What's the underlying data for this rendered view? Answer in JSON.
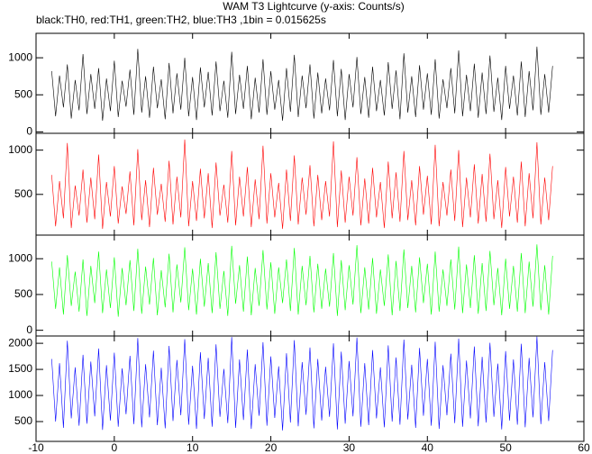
{
  "chart_data": {
    "type": "line",
    "title": "WAM T3 Lightcurve (y-axis: Counts/s)",
    "subtitle": "black:TH0, red:TH1, green:TH2, blue:TH3 ,1bin = 0.015625s",
    "xlim": [
      -10,
      60
    ],
    "xticks": [
      -10,
      0,
      10,
      20,
      30,
      40,
      50,
      60
    ],
    "x": [
      -8,
      -7.5,
      -7,
      -6.5,
      -6,
      -5.5,
      -5,
      -4.5,
      -4,
      -3.5,
      -3,
      -2.5,
      -2,
      -1.5,
      -1,
      -0.5,
      0,
      0.5,
      1,
      1.5,
      2,
      2.5,
      3,
      3.5,
      4,
      4.5,
      5,
      5.5,
      6,
      6.5,
      7,
      7.5,
      8,
      8.5,
      9,
      9.5,
      10,
      10.5,
      11,
      11.5,
      12,
      12.5,
      13,
      13.5,
      14,
      14.5,
      15,
      15.5,
      16,
      16.5,
      17,
      17.5,
      18,
      18.5,
      19,
      19.5,
      20,
      20.5,
      21,
      21.5,
      22,
      22.5,
      23,
      23.5,
      24,
      24.5,
      25,
      25.5,
      26,
      26.5,
      27,
      27.5,
      28,
      28.5,
      29,
      29.5,
      30,
      30.5,
      31,
      31.5,
      32,
      32.5,
      33,
      33.5,
      34,
      34.5,
      35,
      35.5,
      36,
      36.5,
      37,
      37.5,
      38,
      38.5,
      39,
      39.5,
      40,
      40.5,
      41,
      41.5,
      42,
      42.5,
      43,
      43.5,
      44,
      44.5,
      45,
      45.5,
      46,
      46.5,
      47,
      47.5,
      48,
      48.5,
      49,
      49.5,
      50,
      50.5,
      51,
      51.5,
      52,
      52.5,
      53,
      53.5,
      54,
      54.5,
      55,
      55.5,
      56
    ],
    "series": [
      {
        "color": "#000000",
        "ylim": [
          -20,
          1330
        ],
        "yticks": [
          0,
          500,
          1000
        ],
        "values": [
          820,
          210,
          760,
          330,
          910,
          180,
          700,
          290,
          1050,
          240,
          780,
          310,
          860,
          150,
          720,
          280,
          960,
          200,
          690,
          340,
          840,
          230,
          1120,
          260,
          750,
          190,
          880,
          320,
          710,
          170,
          930,
          250,
          790,
          300,
          1000,
          210,
          740,
          160,
          870,
          330,
          810,
          220,
          950,
          280,
          690,
          190,
          1080,
          240,
          770,
          310,
          890,
          170,
          730,
          260,
          980,
          230,
          820,
          300,
          700,
          150,
          860,
          270,
          1040,
          200,
          760,
          320,
          910,
          180,
          800,
          250,
          720,
          290,
          970,
          210,
          850,
          160,
          780,
          330,
          1010,
          240,
          740,
          190,
          880,
          280,
          700,
          220,
          940,
          310,
          830,
          170,
          1060,
          260,
          750,
          200,
          900,
          300,
          790,
          230,
          980,
          180,
          710,
          320,
          860,
          250,
          1100,
          210,
          770,
          280,
          920,
          190,
          800,
          240,
          1030,
          270,
          730,
          160,
          890,
          310,
          760,
          220,
          950,
          200,
          820,
          290,
          1150,
          230,
          780,
          260,
          890
        ]
      },
      {
        "color": "#ff0000",
        "ylim": [
          40,
          1190
        ],
        "yticks": [
          500,
          1000
        ],
        "values": [
          720,
          140,
          650,
          230,
          1080,
          120,
          600,
          260,
          780,
          180,
          690,
          220,
          950,
          110,
          640,
          250,
          820,
          170,
          590,
          280,
          760,
          150,
          1010,
          210,
          660,
          130,
          800,
          270,
          620,
          190,
          880,
          160,
          700,
          240,
          1120,
          140,
          650,
          200,
          790,
          230,
          740,
          120,
          860,
          260,
          610,
          180,
          990,
          150,
          700,
          250,
          810,
          130,
          670,
          220,
          1050,
          170,
          740,
          240,
          630,
          110,
          780,
          200,
          940,
          160,
          690,
          270,
          830,
          140,
          720,
          210,
          650,
          250,
          1100,
          130,
          770,
          180,
          700,
          260,
          920,
          150,
          680,
          170,
          800,
          240,
          640,
          120,
          870,
          230,
          750,
          190,
          990,
          210,
          660,
          150,
          820,
          270,
          710,
          160,
          1060,
          140,
          640,
          260,
          780,
          200,
          1000,
          130,
          690,
          240,
          840,
          170,
          730,
          190,
          960,
          220,
          660,
          120,
          810,
          250,
          700,
          180,
          870,
          140,
          740,
          230,
          1090,
          160,
          690,
          210,
          820
        ]
      },
      {
        "color": "#00ff00",
        "ylim": [
          -80,
          1330
        ],
        "yticks": [
          0,
          500,
          1000
        ],
        "values": [
          960,
          300,
          880,
          220,
          1050,
          340,
          820,
          260,
          990,
          200,
          900,
          380,
          1100,
          240,
          850,
          310,
          1020,
          190,
          870,
          350,
          980,
          270,
          1140,
          230,
          890,
          360,
          1010,
          210,
          840,
          320,
          1070,
          250,
          920,
          390,
          1160,
          280,
          860,
          220,
          1000,
          330,
          940,
          240,
          1090,
          300,
          830,
          200,
          1180,
          370,
          910,
          260,
          1030,
          210,
          870,
          340,
          1120,
          290,
          950,
          230,
          880,
          380,
          990,
          270,
          1150,
          220,
          900,
          350,
          1040,
          250,
          930,
          300,
          860,
          330,
          1080,
          200,
          980,
          280,
          910,
          360,
          1190,
          240,
          880,
          290,
          1010,
          230,
          850,
          340,
          1060,
          210,
          970,
          270,
          1130,
          310,
          900,
          250,
          1020,
          380,
          930,
          220,
          1100,
          260,
          850,
          340,
          990,
          290,
          1170,
          240,
          920,
          310,
          1050,
          230,
          940,
          270,
          1110,
          350,
          870,
          210,
          1000,
          300,
          900,
          260,
          1080,
          240,
          960,
          330,
          1200,
          280,
          910,
          220,
          1040
        ]
      },
      {
        "color": "#0000ff",
        "ylim": [
          120,
          2140
        ],
        "yticks": [
          500,
          1000,
          1500,
          2000
        ],
        "values": [
          1700,
          500,
          1620,
          380,
          2050,
          560,
          1540,
          420,
          1780,
          460,
          1650,
          600,
          1900,
          340,
          1580,
          520,
          1820,
          400,
          1520,
          640,
          1760,
          450,
          2100,
          390,
          1600,
          580,
          1860,
          430,
          1530,
          370,
          1950,
          510,
          1680,
          620,
          2080,
          440,
          1570,
          360,
          1830,
          550,
          1720,
          400,
          1980,
          590,
          1510,
          470,
          2120,
          380,
          1690,
          530,
          1880,
          360,
          1600,
          610,
          2020,
          420,
          1750,
          570,
          1560,
          330,
          1810,
          480,
          2060,
          410,
          1640,
          630,
          1920,
          370,
          1700,
          520,
          1550,
          590,
          2000,
          350,
          1840,
          460,
          1660,
          600,
          2110,
          400,
          1620,
          430,
          1870,
          560,
          1540,
          390,
          1960,
          500,
          1730,
          440,
          2070,
          540,
          1590,
          380,
          1910,
          610,
          1700,
          420,
          2030,
          360,
          1580,
          620,
          1800,
          470,
          2090,
          400,
          1670,
          560,
          1940,
          410,
          1740,
          480,
          2010,
          590,
          1610,
          350,
          1850,
          520,
          1690,
          440,
          1990,
          390,
          1720,
          580,
          2130,
          450,
          1640,
          510,
          1870
        ]
      }
    ]
  }
}
